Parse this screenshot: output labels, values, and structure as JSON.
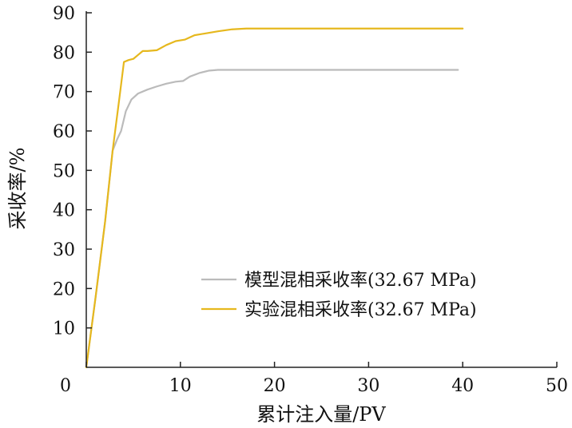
{
  "chart_data": {
    "type": "line",
    "title": "",
    "xlabel": "累计注入量/PV",
    "ylabel": "采收率/%",
    "xlim": [
      0,
      50
    ],
    "ylim": [
      0,
      90
    ],
    "xticks": [
      0,
      10,
      20,
      30,
      40,
      50
    ],
    "yticks": [
      10,
      20,
      30,
      40,
      50,
      60,
      70,
      80,
      90
    ],
    "grid": false,
    "legend_position": "bottom-right",
    "series": [
      {
        "name": "模型混相采收率(32.67 MPa)",
        "color": "#bbbbbb",
        "x": [
          0,
          1,
          2,
          2.8,
          3.3,
          3.7,
          4.2,
          4.8,
          5.5,
          6.5,
          7.5,
          8.5,
          9.5,
          10.3,
          11,
          12,
          13,
          14,
          20,
          30,
          39.5
        ],
        "y": [
          0,
          18,
          37,
          55,
          58,
          60,
          65,
          68,
          69.5,
          70.5,
          71.3,
          72,
          72.5,
          72.7,
          73.8,
          74.7,
          75.3,
          75.5,
          75.5,
          75.5,
          75.5
        ]
      },
      {
        "name": "实验混相采收率(32.67 MPa)",
        "color": "#e6b81e",
        "x": [
          0,
          1,
          2,
          2.8,
          3.5,
          4,
          4.5,
          5,
          5.5,
          6,
          6.5,
          7.5,
          8.5,
          9.5,
          10.5,
          11.5,
          12.5,
          14,
          15.5,
          17,
          20,
          30,
          40
        ],
        "y": [
          0,
          18,
          37,
          55,
          68,
          77.5,
          78,
          78.3,
          79.3,
          80.3,
          80.3,
          80.5,
          81.8,
          82.8,
          83.2,
          84.3,
          84.7,
          85.3,
          85.8,
          86,
          86,
          86,
          86
        ]
      }
    ]
  }
}
